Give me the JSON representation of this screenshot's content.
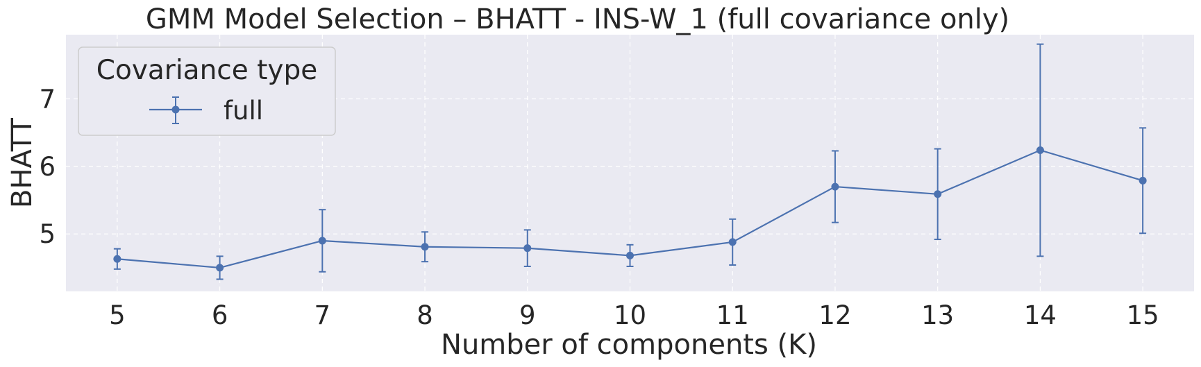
{
  "chart_data": {
    "type": "line",
    "title": "GMM Model Selection – BHATT - INS-W_1 (full covariance only)",
    "xlabel": "Number of components (K)",
    "ylabel": "BHATT",
    "x": [
      5,
      6,
      7,
      8,
      9,
      10,
      11,
      12,
      13,
      14,
      15
    ],
    "xticks": [
      "5",
      "6",
      "7",
      "8",
      "9",
      "10",
      "11",
      "12",
      "13",
      "14",
      "15"
    ],
    "yticks": [
      "5",
      "6",
      "7"
    ],
    "xlim": [
      4.5,
      15.5
    ],
    "ylim": [
      4.15,
      7.95
    ],
    "grid": true,
    "legend": {
      "title": "Covariance type",
      "position": "top-left"
    },
    "series": [
      {
        "name": "full",
        "color": "#4c72b0",
        "marker": "circle",
        "values": [
          4.63,
          4.5,
          4.9,
          4.81,
          4.79,
          4.68,
          4.88,
          5.7,
          5.59,
          6.24,
          5.79
        ],
        "error": [
          0.15,
          0.17,
          0.46,
          0.22,
          0.27,
          0.16,
          0.34,
          0.53,
          0.67,
          1.57,
          0.78
        ]
      }
    ]
  },
  "colors": {
    "plot_background": "#eaeaf2",
    "grid": "#ffffff",
    "text": "#262626"
  }
}
